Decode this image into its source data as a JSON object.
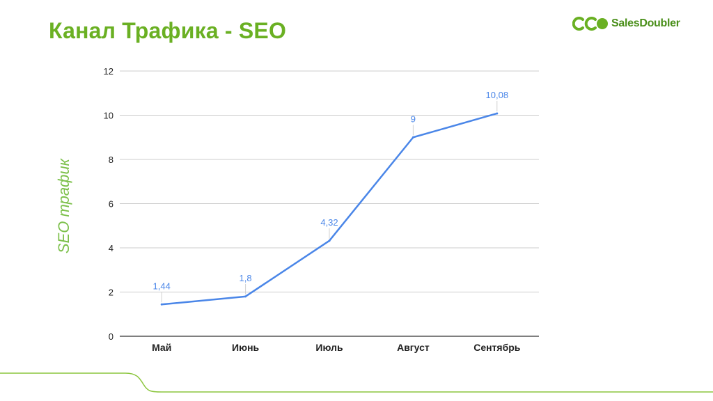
{
  "slide": {
    "title": "Канал Трафика - SEO",
    "logo_text": "SalesDoubler",
    "brand_color": "#6ab023",
    "line_color": "#4a86e8"
  },
  "chart_data": {
    "type": "line",
    "categories": [
      "Май",
      "Июнь",
      "Июль",
      "Август",
      "Сентябрь"
    ],
    "series": [
      {
        "values": [
          1.44,
          1.8,
          4.32,
          9,
          10.08
        ],
        "labels": [
          "1,44",
          "1,8",
          "4,32",
          "9",
          "10,08"
        ]
      }
    ],
    "ylabel": "SEO трафик",
    "xlabel": "",
    "ylim": [
      0,
      12
    ],
    "yticks": [
      0,
      2,
      4,
      6,
      8,
      10,
      12
    ],
    "grid": true,
    "legend": "none"
  }
}
